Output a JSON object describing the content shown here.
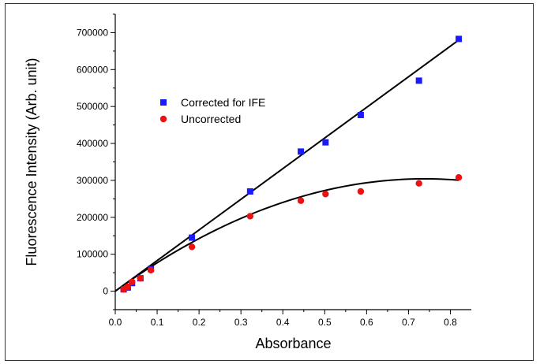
{
  "chart_data": {
    "type": "scatter",
    "title": "",
    "xlabel": "Absorbance",
    "ylabel": "Fluorescence Intensity (Arb. unit)",
    "xlim": [
      0.0,
      0.85
    ],
    "ylim": [
      -50000,
      750000
    ],
    "x_ticks": [
      "0.0",
      "0.1",
      "0.2",
      "0.3",
      "0.4",
      "0.5",
      "0.6",
      "0.7",
      "0.8"
    ],
    "x_tick_values": [
      0.0,
      0.1,
      0.2,
      0.3,
      0.4,
      0.5,
      0.6,
      0.7,
      0.8
    ],
    "y_ticks": [
      "0",
      "100000",
      "200000",
      "300000",
      "400000",
      "500000",
      "600000",
      "700000"
    ],
    "y_tick_values": [
      0,
      100000,
      200000,
      300000,
      400000,
      500000,
      600000,
      700000
    ],
    "grid": false,
    "legend_position": "upper-left",
    "series": [
      {
        "name": "Corrected for IFE",
        "marker": "square",
        "color": "#1a1aff",
        "x": [
          0.02,
          0.03,
          0.04,
          0.06,
          0.085,
          0.183,
          0.322,
          0.443,
          0.502,
          0.586,
          0.725,
          0.82
        ],
        "y": [
          5000,
          10000,
          22000,
          35000,
          60000,
          145000,
          270000,
          378000,
          403000,
          477000,
          570000,
          683000
        ],
        "fit": {
          "type": "linear",
          "color": "#000000",
          "x": [
            0.0,
            0.82
          ],
          "y": [
            0,
            680000
          ]
        }
      },
      {
        "name": "Uncorrected",
        "marker": "circle",
        "color": "#ee1111",
        "x": [
          0.02,
          0.03,
          0.04,
          0.06,
          0.085,
          0.183,
          0.322,
          0.443,
          0.502,
          0.586,
          0.725,
          0.82
        ],
        "y": [
          5000,
          12000,
          25000,
          35000,
          57000,
          120000,
          203000,
          245000,
          263000,
          270000,
          292000,
          308000
        ],
        "fit": {
          "type": "polynomial",
          "color": "#000000",
          "coefficients": [
            0,
            824000,
            -558000
          ],
          "x_range": [
            0.0,
            0.82
          ]
        }
      }
    ]
  }
}
